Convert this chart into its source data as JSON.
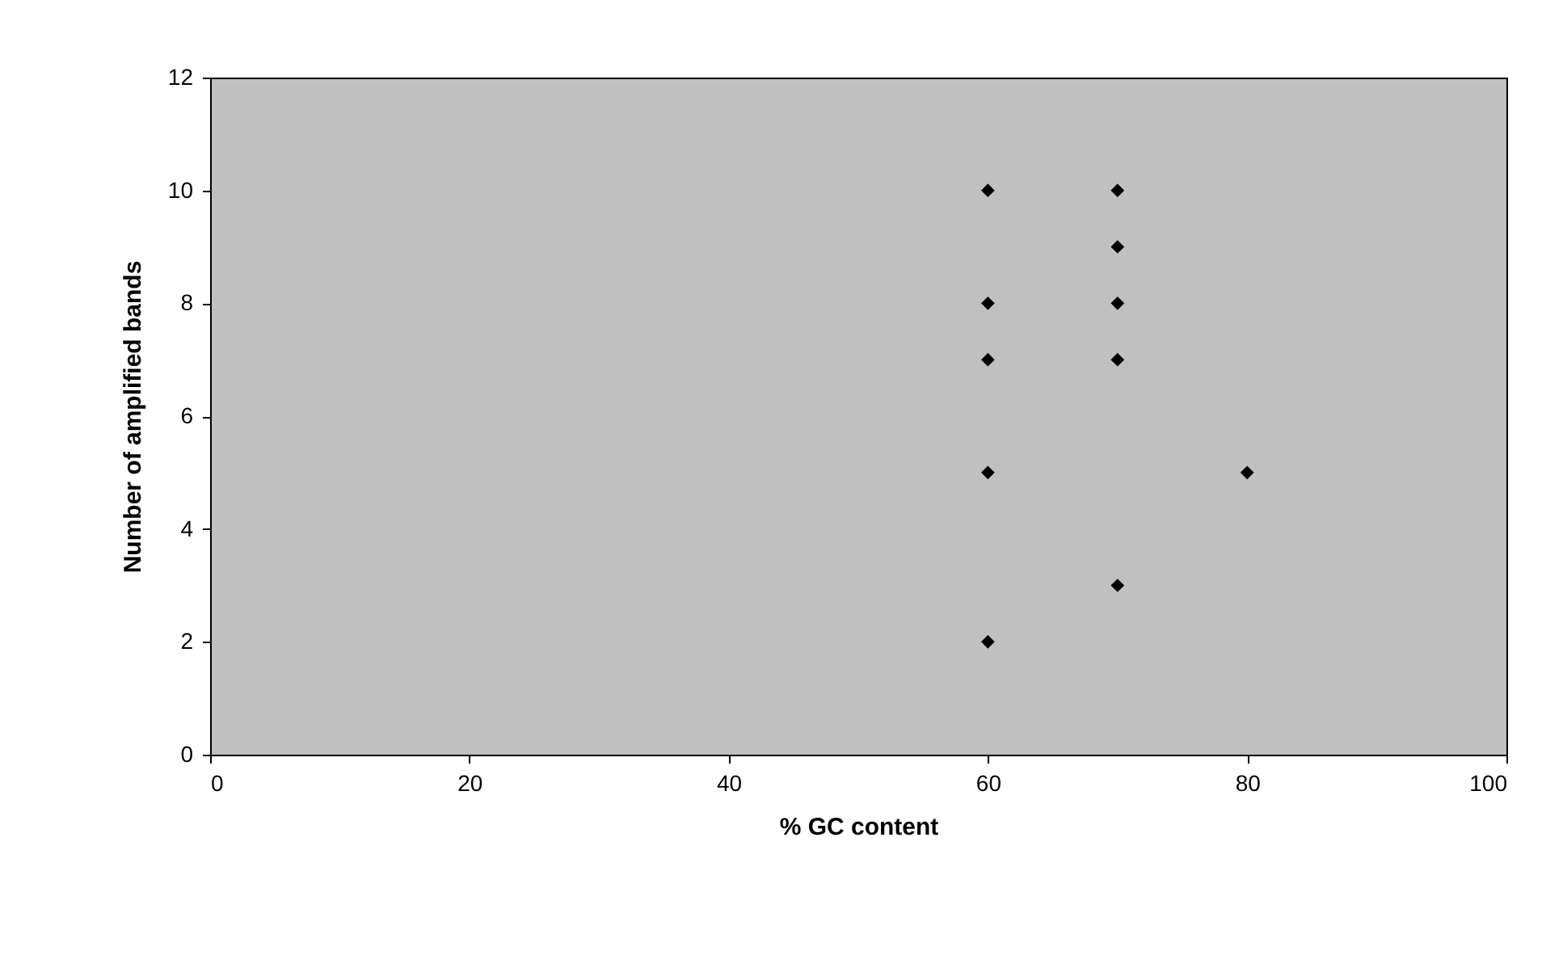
{
  "chart_data": {
    "type": "scatter",
    "xlabel": "% GC content",
    "ylabel": "Number of amplified bands",
    "x": [
      60,
      60,
      60,
      60,
      60,
      70,
      70,
      70,
      70,
      70,
      80
    ],
    "series": [
      {
        "color": "#000000",
        "values": [
          10,
          8,
          7,
          5,
          2,
          10,
          9,
          8,
          7,
          3,
          5
        ]
      }
    ],
    "xlim": [
      0,
      100
    ],
    "xticks": [
      0,
      20,
      40,
      60,
      80,
      100
    ],
    "ylim": [
      0,
      12
    ],
    "yticks": [
      0,
      2,
      4,
      6,
      8,
      10,
      12
    ],
    "grid": false,
    "marker": "diamond"
  }
}
